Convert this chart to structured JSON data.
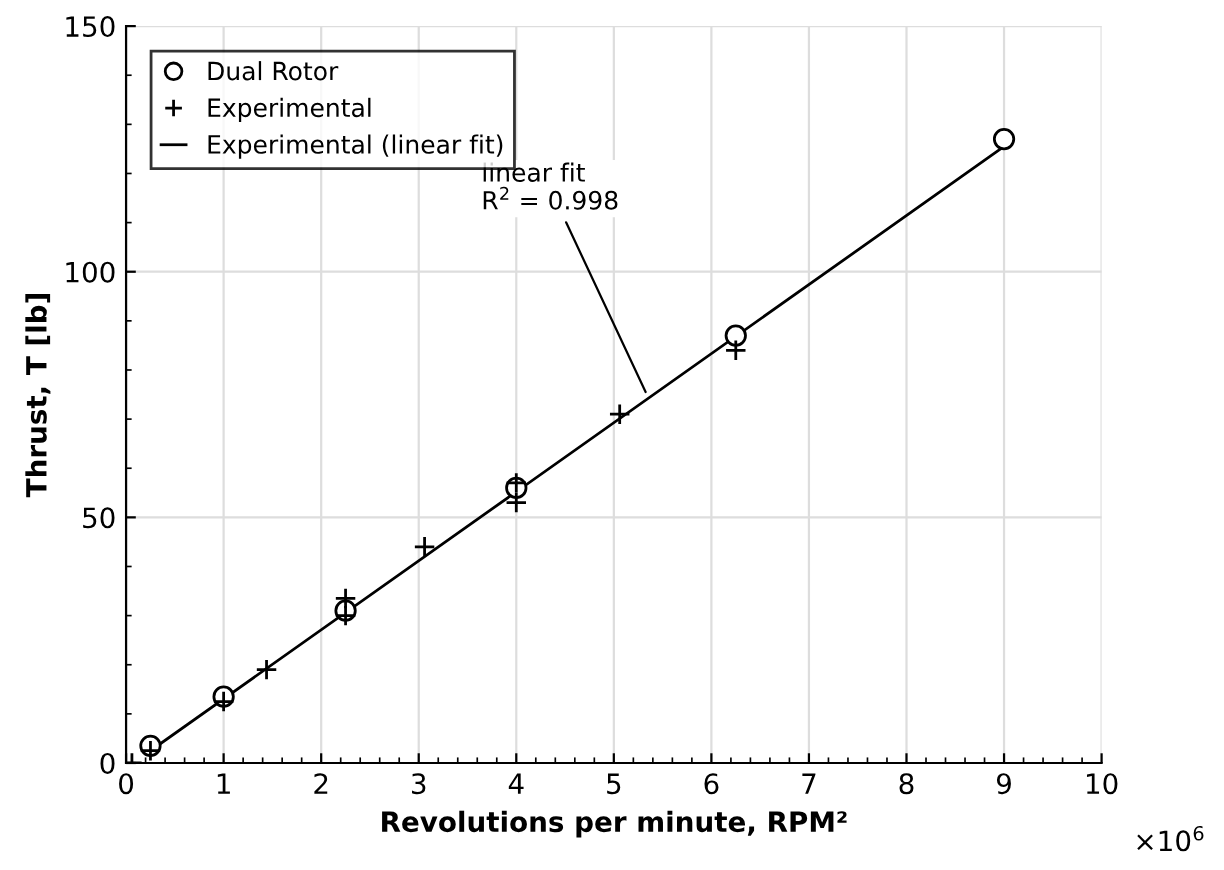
{
  "chart_data": {
    "type": "scatter",
    "xlabel": "Revolutions per minute, RPM²",
    "ylabel": "Thrust, T [lb]",
    "xlim": [
      0,
      10
    ],
    "xticks": [
      0,
      1,
      2,
      3,
      4,
      5,
      6,
      7,
      8,
      9,
      10
    ],
    "ylim": [
      0,
      150
    ],
    "yticks": [
      0,
      50,
      100,
      150
    ],
    "grid": true,
    "legend": "top left",
    "series": [
      {
        "name": "Dual Rotor",
        "color": "#000000",
        "marker": "circle",
        "x": [
          0.25,
          1,
          2.25,
          4,
          6.25,
          9
        ],
        "values": [
          3.5,
          13.5,
          31,
          56,
          87,
          127
        ]
      },
      {
        "name": "Experimental",
        "color": "#000000",
        "marker": "cross",
        "x": [
          0.06,
          0.25,
          1,
          1.44,
          2.25,
          2.25,
          3.06,
          4,
          4,
          5.06,
          6.25
        ],
        "values": [
          0,
          2.5,
          12.5,
          19,
          33.5,
          30,
          44,
          57,
          53,
          71,
          84
        ]
      },
      {
        "name": "Experimental (linear fit)",
        "type": "line",
        "color": "#000000",
        "marker": "none",
        "line_style": "solid",
        "x": [
          0.25,
          9
        ],
        "values": [
          2.5,
          125.5
        ]
      }
    ],
    "annotations": [
      {
        "text": "linear fit\nR$^{2}$ = 0.998",
        "x": 5.35,
        "y": 74.5
      },
      "×10$^{6}$"
    ]
  }
}
